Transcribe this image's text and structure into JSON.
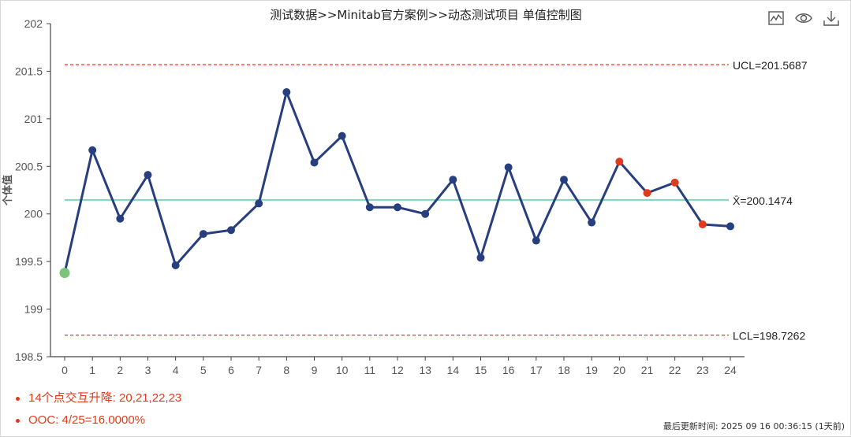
{
  "title": "测试数据>>Minitab官方案例>>动态测试项目 单值控制图",
  "toolbar": {
    "icons": [
      "line-chart-icon",
      "eye-icon",
      "download-icon"
    ]
  },
  "chart_data": {
    "type": "line",
    "ylabel": "个体值",
    "xlabel": "",
    "ylim": [
      198.5,
      202
    ],
    "yticks": [
      198.5,
      199,
      199.5,
      200,
      200.5,
      201,
      201.5,
      202
    ],
    "ytick_labels": [
      "198.5",
      "199",
      "199.5",
      "200",
      "200.5",
      "201",
      "201.5",
      "202"
    ],
    "x": [
      0,
      1,
      2,
      3,
      4,
      5,
      6,
      7,
      8,
      9,
      10,
      11,
      12,
      13,
      14,
      15,
      16,
      17,
      18,
      19,
      20,
      21,
      22,
      23,
      24
    ],
    "x_labels": [
      "0",
      "1",
      "2",
      "3",
      "4",
      "5",
      "6",
      "7",
      "8",
      "9",
      "10",
      "11",
      "12",
      "13",
      "14",
      "15",
      "16",
      "17",
      "18",
      "19",
      "20",
      "21",
      "22",
      "23",
      "24"
    ],
    "values": [
      199.38,
      200.67,
      199.95,
      200.41,
      199.46,
      199.79,
      199.83,
      200.11,
      201.28,
      200.54,
      200.82,
      200.07,
      200.07,
      200.0,
      200.36,
      199.54,
      200.49,
      199.72,
      200.36,
      199.91,
      200.55,
      200.22,
      200.33,
      199.89,
      199.87
    ],
    "point_colors": {
      "0": "#7cc47c",
      "20": "#e23b1c",
      "21": "#e23b1c",
      "22": "#e23b1c",
      "23": "#e23b1c"
    },
    "line_color": "#273f7f",
    "ucl": 201.5687,
    "cl": 200.1474,
    "lcl": 198.7262,
    "ucl_label": "UCL=201.5687",
    "cl_label": "X̄=200.1474",
    "lcl_label": "LCL=198.7262",
    "limit_color": "#e23b1c",
    "center_color": "#7fd6b8",
    "grid": false
  },
  "notes": [
    "14个点交互升降: 20,21,22,23",
    "OOC: 4/25=16.0000%"
  ],
  "updated": "最后更新时间: 2025 09 16 00:36:15 (1天前)"
}
